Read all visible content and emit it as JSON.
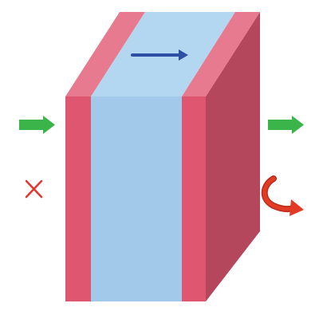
{
  "diagram": {
    "colors": {
      "background": "#ffffff",
      "outer_layer_front": "#de566f",
      "outer_layer_top": "#e77a8e",
      "core_layer_front": "#a2c8ea",
      "core_layer_top": "#b4d7f1",
      "side_face": "#b5475c",
      "top_arrow": "#2f4ea5",
      "flow_arrow": "#3bb54a",
      "flow_arrow_dark": "#2f9a3c",
      "cross_mark": "#e8352b",
      "curved_arrow": "#e23a25",
      "curved_arrow_dark": "#b92c1c"
    },
    "icons": {
      "top_arrow": "right-arrow-icon",
      "left_arrow": "right-arrow-icon",
      "right_arrow": "right-arrow-icon",
      "cross": "cross-icon",
      "curved_arrow": "rotation-arrow-icon"
    }
  }
}
